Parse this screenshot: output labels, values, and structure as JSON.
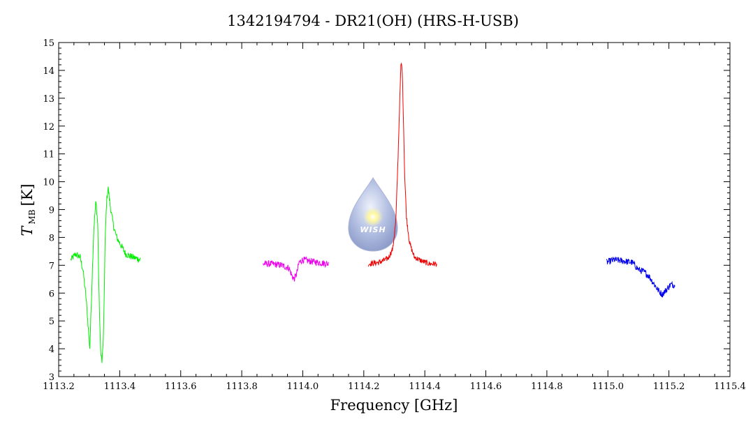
{
  "chart_data": {
    "type": "line",
    "title": "1342194794 - DR21(OH) (HRS-H-USB)",
    "xlabel": "Frequency [GHz]",
    "ylabel_main": "T",
    "ylabel_sub": "MB",
    "ylabel_unit": "[K]",
    "xlim": [
      1113.2,
      1115.4
    ],
    "ylim": [
      3,
      15
    ],
    "x_ticks": [
      "1113.2",
      "1113.4",
      "1113.6",
      "1113.8",
      "1114.0",
      "1114.2",
      "1114.4",
      "1114.6",
      "1114.8",
      "1115.0",
      "1115.2",
      "1115.4"
    ],
    "x_tick_values": [
      1113.2,
      1113.4,
      1113.6,
      1113.8,
      1114.0,
      1114.2,
      1114.4,
      1114.6,
      1114.8,
      1115.0,
      1115.2,
      1115.4
    ],
    "y_ticks": [
      "3",
      "4",
      "5",
      "6",
      "7",
      "8",
      "9",
      "10",
      "11",
      "12",
      "13",
      "14",
      "15"
    ],
    "y_tick_values": [
      3,
      4,
      5,
      6,
      7,
      8,
      9,
      10,
      11,
      12,
      13,
      14,
      15
    ],
    "grid": false,
    "series": [
      {
        "color": "#00ee00",
        "x": [
          1113.24,
          1113.255,
          1113.27,
          1113.28,
          1113.29,
          1113.296,
          1113.302,
          1113.308,
          1113.315,
          1113.322,
          1113.328,
          1113.332,
          1113.337,
          1113.342,
          1113.347,
          1113.352,
          1113.357,
          1113.362,
          1113.367,
          1113.372,
          1113.38,
          1113.39,
          1113.405,
          1113.42,
          1113.44,
          1113.468
        ],
        "y": [
          7.2,
          7.4,
          7.3,
          6.8,
          5.8,
          4.9,
          4.0,
          6.0,
          8.3,
          9.3,
          8.5,
          6.0,
          4.0,
          3.5,
          4.5,
          7.8,
          9.3,
          9.8,
          9.3,
          8.9,
          8.4,
          8.0,
          7.7,
          7.4,
          7.3,
          7.2
        ],
        "noise": 0.12
      },
      {
        "color": "#ee00ee",
        "x": [
          1113.87,
          1113.9,
          1113.93,
          1113.955,
          1113.965,
          1113.972,
          1113.98,
          1113.988,
          1114.0,
          1114.02,
          1114.05,
          1114.085
        ],
        "y": [
          7.05,
          7.05,
          7.0,
          6.9,
          6.6,
          6.5,
          6.7,
          7.1,
          7.2,
          7.15,
          7.1,
          7.05
        ],
        "noise": 0.12
      },
      {
        "color": "#ee0000",
        "x": [
          1114.215,
          1114.25,
          1114.28,
          1114.295,
          1114.305,
          1114.312,
          1114.318,
          1114.322,
          1114.326,
          1114.33,
          1114.334,
          1114.34,
          1114.35,
          1114.365,
          1114.39,
          1114.415,
          1114.44
        ],
        "y": [
          7.05,
          7.1,
          7.25,
          7.6,
          8.6,
          10.8,
          13.0,
          14.3,
          14.0,
          12.2,
          10.2,
          8.7,
          7.8,
          7.3,
          7.15,
          7.05,
          7.05
        ],
        "noise": 0.1
      },
      {
        "color": "#0000ee",
        "x": [
          1114.995,
          1115.02,
          1115.05,
          1115.08,
          1115.1,
          1115.12,
          1115.135,
          1115.15,
          1115.165,
          1115.178,
          1115.19,
          1115.205,
          1115.22
        ],
        "y": [
          7.1,
          7.2,
          7.15,
          7.1,
          6.85,
          6.75,
          6.6,
          6.35,
          6.1,
          5.95,
          6.1,
          6.3,
          6.3
        ],
        "noise": 0.12
      }
    ],
    "logo_label": "WISH"
  }
}
